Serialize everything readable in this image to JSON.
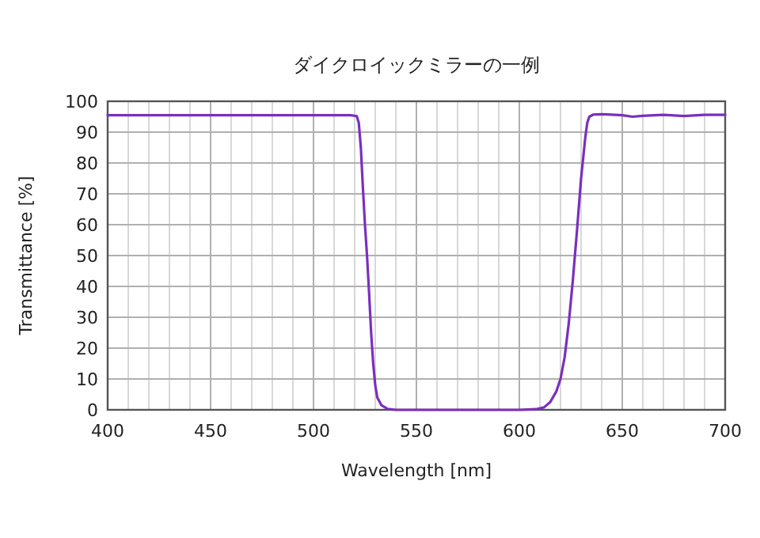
{
  "chart_data": {
    "type": "line",
    "title": "ダイクロイックミラーの一例",
    "xlabel": "Wavelength [nm]",
    "ylabel": "Transmittance [%]",
    "xlim": [
      400,
      700
    ],
    "ylim": [
      0,
      100
    ],
    "xticks": [
      400,
      {
        "value": 410,
        "label": null
      },
      {
        "value": 420,
        "label": null
      },
      {
        "value": 430,
        "label": null
      },
      {
        "value": 440,
        "label": null
      },
      450,
      {
        "value": 460,
        "label": null
      },
      {
        "value": 470,
        "label": null
      },
      {
        "value": 480,
        "label": null
      },
      {
        "value": 490,
        "label": null
      },
      500,
      {
        "value": 510,
        "label": null
      },
      {
        "value": 520,
        "label": null
      },
      {
        "value": 530,
        "label": null
      },
      {
        "value": 540,
        "label": null
      },
      550,
      {
        "value": 560,
        "label": null
      },
      {
        "value": 570,
        "label": null
      },
      {
        "value": 580,
        "label": null
      },
      {
        "value": 590,
        "label": null
      },
      600,
      {
        "value": 610,
        "label": null
      },
      {
        "value": 620,
        "label": null
      },
      {
        "value": 630,
        "label": null
      },
      {
        "value": 640,
        "label": null
      },
      650,
      {
        "value": 660,
        "label": null
      },
      {
        "value": 670,
        "label": null
      },
      {
        "value": 680,
        "label": null
      },
      {
        "value": 690,
        "label": null
      },
      700
    ],
    "yticks": [
      0,
      10,
      20,
      30,
      40,
      50,
      60,
      70,
      80,
      90,
      100
    ],
    "grid": true,
    "marker": "none",
    "line_style": "solid",
    "series": [
      {
        "color": "#7b2fbe",
        "x": [
          400,
          450,
          500,
          518,
          521,
          522,
          523,
          524,
          525,
          526,
          527,
          528,
          529,
          530,
          531,
          533,
          536,
          540,
          560,
          580,
          600,
          608,
          612,
          615,
          618,
          620,
          622,
          624,
          626,
          628,
          630,
          632,
          633,
          634,
          636,
          640,
          650,
          655,
          660,
          670,
          680,
          690,
          700
        ],
        "values": [
          95.5,
          95.5,
          95.5,
          95.5,
          95.2,
          93,
          85,
          72,
          60,
          50,
          38,
          25,
          15,
          8,
          4,
          1.5,
          0.3,
          0,
          0,
          0,
          0,
          0.2,
          0.8,
          2.5,
          6,
          10,
          17,
          28,
          42,
          58,
          75,
          88,
          93,
          95,
          95.7,
          95.8,
          95.5,
          95.0,
          95.3,
          95.6,
          95.2,
          95.6,
          95.6
        ]
      }
    ]
  }
}
